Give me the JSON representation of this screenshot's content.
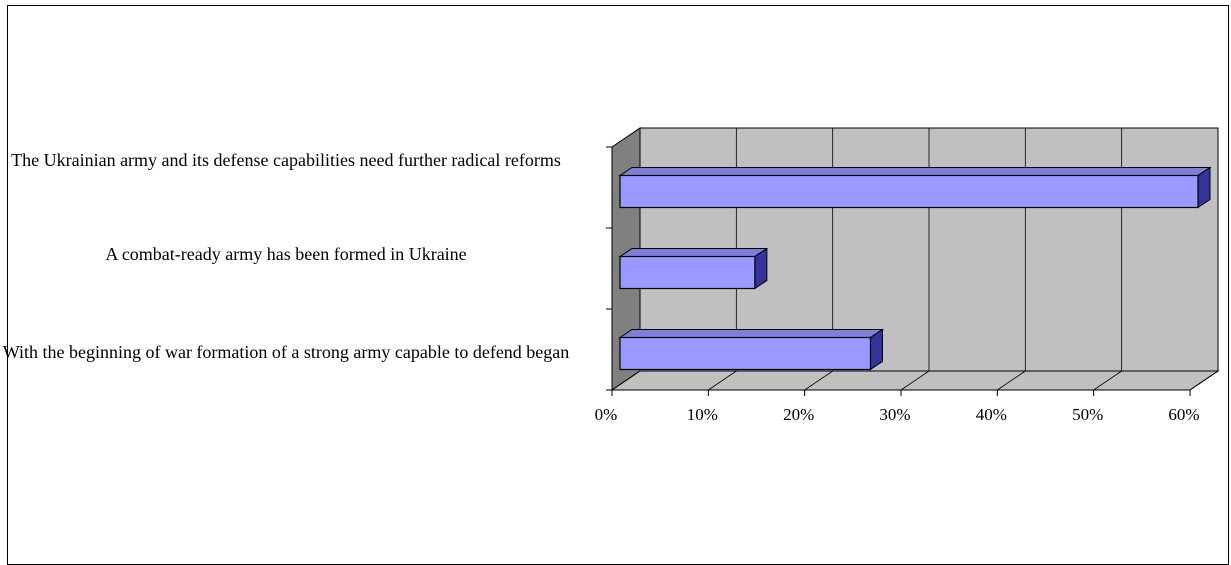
{
  "chart_data": {
    "type": "bar",
    "orientation": "horizontal",
    "categories": [
      "The Ukrainian army and its defense capabilities need further radical reforms",
      "A combat-ready army has been formed in Ukraine",
      "With the beginning of war formation of a strong army capable to defend began"
    ],
    "values": [
      60,
      14,
      26
    ],
    "xlim": [
      0,
      60
    ],
    "xticks": [
      "0%",
      "10%",
      "20%",
      "30%",
      "40%",
      "50%",
      "60%"
    ],
    "grid": true,
    "style": "3d",
    "colors": {
      "bar_front": "#9999ff",
      "bar_top": "#7f7fd9",
      "bar_side": "#333399",
      "wall": "#c0c0c0",
      "side_wall": "#808080"
    }
  }
}
